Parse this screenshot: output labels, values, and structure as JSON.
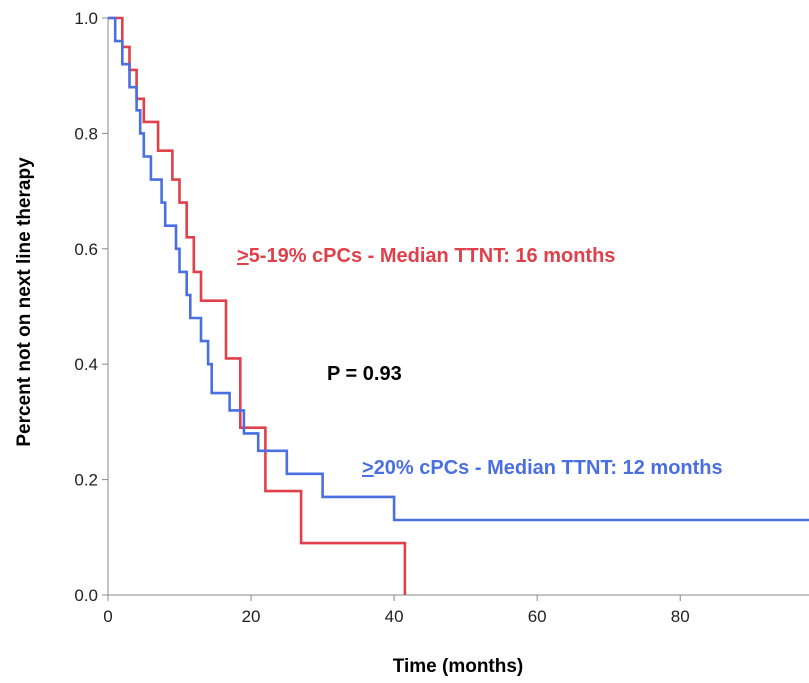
{
  "chart_data": {
    "type": "line",
    "step": true,
    "xlabel": "Time (months)",
    "ylabel": "Percent not on next line therapy",
    "xlim": [
      0,
      98
    ],
    "ylim": [
      0,
      1.0
    ],
    "xticks": [
      "0",
      "20",
      "40",
      "60",
      "80"
    ],
    "yticks": [
      "0.0",
      "0.2",
      "0.4",
      "0.6",
      "0.8",
      "1.0"
    ],
    "grid": false,
    "annotations": {
      "p_value": "P = 0.93",
      "red_label_prefix": ">",
      "red_label_rest": "5-19% cPCs - Median TTNT: 16 months",
      "blue_label_prefix": ">",
      "blue_label_rest": "20% cPCs - Median TTNT: 12 months"
    },
    "series": [
      {
        "color": "#e0404a",
        "points": [
          [
            0,
            1.0
          ],
          [
            2,
            1.0
          ],
          [
            2,
            0.95
          ],
          [
            3,
            0.95
          ],
          [
            3,
            0.91
          ],
          [
            4,
            0.91
          ],
          [
            4,
            0.86
          ],
          [
            5,
            0.86
          ],
          [
            5,
            0.82
          ],
          [
            7,
            0.82
          ],
          [
            7,
            0.77
          ],
          [
            9,
            0.77
          ],
          [
            9,
            0.72
          ],
          [
            10,
            0.72
          ],
          [
            10,
            0.68
          ],
          [
            11,
            0.68
          ],
          [
            11,
            0.62
          ],
          [
            12,
            0.62
          ],
          [
            12,
            0.56
          ],
          [
            13,
            0.56
          ],
          [
            13,
            0.51
          ],
          [
            16.5,
            0.51
          ],
          [
            16.5,
            0.41
          ],
          [
            18.5,
            0.41
          ],
          [
            18.5,
            0.29
          ],
          [
            22,
            0.29
          ],
          [
            22,
            0.18
          ],
          [
            27,
            0.18
          ],
          [
            27,
            0.09
          ],
          [
            41.5,
            0.09
          ],
          [
            41.5,
            0.0
          ]
        ]
      },
      {
        "color": "#4a6fe0",
        "points": [
          [
            0,
            1.0
          ],
          [
            1,
            1.0
          ],
          [
            1,
            0.96
          ],
          [
            2,
            0.96
          ],
          [
            2,
            0.92
          ],
          [
            3,
            0.92
          ],
          [
            3,
            0.88
          ],
          [
            4,
            0.88
          ],
          [
            4,
            0.84
          ],
          [
            4.5,
            0.84
          ],
          [
            4.5,
            0.8
          ],
          [
            5,
            0.8
          ],
          [
            5,
            0.76
          ],
          [
            6,
            0.76
          ],
          [
            6,
            0.72
          ],
          [
            7.5,
            0.72
          ],
          [
            7.5,
            0.68
          ],
          [
            8,
            0.68
          ],
          [
            8,
            0.64
          ],
          [
            9.5,
            0.64
          ],
          [
            9.5,
            0.6
          ],
          [
            10,
            0.6
          ],
          [
            10,
            0.56
          ],
          [
            11,
            0.56
          ],
          [
            11,
            0.52
          ],
          [
            11.5,
            0.52
          ],
          [
            11.5,
            0.48
          ],
          [
            13,
            0.48
          ],
          [
            13,
            0.44
          ],
          [
            14,
            0.44
          ],
          [
            14,
            0.4
          ],
          [
            14.5,
            0.4
          ],
          [
            14.5,
            0.35
          ],
          [
            17,
            0.35
          ],
          [
            17,
            0.32
          ],
          [
            19,
            0.32
          ],
          [
            19,
            0.28
          ],
          [
            21,
            0.28
          ],
          [
            21,
            0.25
          ],
          [
            25,
            0.25
          ],
          [
            25,
            0.21
          ],
          [
            30,
            0.21
          ],
          [
            30,
            0.17
          ],
          [
            40,
            0.17
          ],
          [
            40,
            0.13
          ],
          [
            98,
            0.13
          ]
        ]
      }
    ]
  }
}
